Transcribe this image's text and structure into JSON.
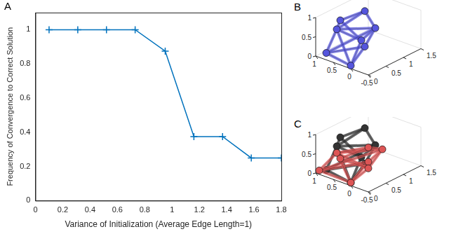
{
  "chart_data": {
    "type": "line",
    "x_label": "Variance of Initialization (Average Edge Length=1)",
    "y_label": "Frequency of Convergence to Correct Solution",
    "x": [
      0.1,
      0.31,
      0.52,
      0.73,
      0.95,
      1.16,
      1.37,
      1.58,
      1.8
    ],
    "values": [
      1,
      1,
      1,
      1,
      0.875,
      0.375,
      0.375,
      0.25,
      0.25
    ],
    "color": "#0072bd",
    "marker": "plus",
    "grid": false,
    "xlim": [
      0,
      1.8
    ],
    "xticks": [
      0,
      0.2,
      0.4,
      0.6,
      0.8,
      1,
      1.2,
      1.4,
      1.6,
      1.8
    ],
    "ylim": [
      0,
      1.1
    ],
    "yticks": [
      0,
      0.2,
      0.4,
      0.6,
      0.8,
      1
    ]
  },
  "panel_label": "A",
  "structures": [
    {
      "panel_label": "B",
      "xlim": [
        -0.5,
        1
      ],
      "ylim": [
        0,
        1.5
      ],
      "zlim": [
        0,
        1
      ],
      "xticks": [
        -0.5,
        0,
        0.5,
        1
      ],
      "yticks": [
        0,
        0.5,
        1,
        1.5
      ],
      "zticks": [
        0,
        0.5,
        1
      ],
      "layers": [
        {
          "color": "#5555dd",
          "nodes": [
            [
              0.1,
              0.1,
              0
            ],
            [
              0.8,
              0.1,
              0.1
            ],
            [
              0.5,
              0.9,
              0
            ],
            [
              0,
              0.3,
              0.6
            ],
            [
              0.9,
              0.5,
              0.5
            ],
            [
              0.3,
              1,
              0.5
            ],
            [
              0.5,
              0.2,
              1
            ],
            [
              0.4,
              0.8,
              1
            ]
          ],
          "edges": [
            [
              0,
              1
            ],
            [
              1,
              2
            ],
            [
              2,
              0
            ],
            [
              0,
              3
            ],
            [
              1,
              4
            ],
            [
              2,
              5
            ],
            [
              3,
              4
            ],
            [
              4,
              5
            ],
            [
              5,
              3
            ],
            [
              3,
              6
            ],
            [
              4,
              6
            ],
            [
              4,
              7
            ],
            [
              5,
              7
            ],
            [
              6,
              7
            ],
            [
              0,
              4
            ],
            [
              1,
              5
            ]
          ]
        }
      ]
    },
    {
      "panel_label": "C",
      "xlim": [
        -0.5,
        1
      ],
      "ylim": [
        0,
        1.5
      ],
      "zlim": [
        0,
        1
      ],
      "xticks": [
        -0.5,
        0,
        0.5,
        1
      ],
      "yticks": [
        0,
        0.5,
        1,
        1.5
      ],
      "zticks": [
        0,
        0.5,
        1
      ],
      "layers": [
        {
          "color": "#333333",
          "nodes": [
            [
              0.1,
              0.1,
              0
            ],
            [
              0.8,
              0.1,
              0.1
            ],
            [
              0.5,
              0.9,
              0
            ],
            [
              0,
              0.3,
              0.6
            ],
            [
              0.9,
              0.5,
              0.5
            ],
            [
              0.3,
              1,
              0.5
            ],
            [
              0.5,
              0.2,
              1
            ],
            [
              0.4,
              0.8,
              1
            ]
          ],
          "edges": [
            [
              0,
              1
            ],
            [
              1,
              2
            ],
            [
              2,
              0
            ],
            [
              0,
              3
            ],
            [
              1,
              4
            ],
            [
              2,
              5
            ],
            [
              3,
              4
            ],
            [
              4,
              5
            ],
            [
              5,
              3
            ],
            [
              3,
              6
            ],
            [
              4,
              6
            ],
            [
              4,
              7
            ],
            [
              5,
              7
            ],
            [
              6,
              7
            ],
            [
              0,
              4
            ],
            [
              1,
              5
            ]
          ]
        },
        {
          "color": "#dd5555",
          "nodes": [
            [
              0.1,
              0.1,
              0
            ],
            [
              0.9,
              0,
              0.1
            ],
            [
              0.5,
              1,
              0
            ],
            [
              -0.1,
              0.4,
              0.3
            ],
            [
              1,
              0.6,
              0.25
            ],
            [
              0.3,
              1.2,
              0.3
            ],
            [
              0.5,
              0.2,
              0.45
            ],
            [
              0.4,
              0.9,
              0.45
            ]
          ],
          "edges": [
            [
              0,
              1
            ],
            [
              1,
              2
            ],
            [
              2,
              0
            ],
            [
              0,
              3
            ],
            [
              1,
              4
            ],
            [
              2,
              5
            ],
            [
              3,
              4
            ],
            [
              4,
              5
            ],
            [
              5,
              3
            ],
            [
              3,
              6
            ],
            [
              4,
              6
            ],
            [
              4,
              7
            ],
            [
              5,
              7
            ],
            [
              6,
              7
            ],
            [
              0,
              4
            ],
            [
              1,
              5
            ]
          ]
        }
      ]
    }
  ]
}
